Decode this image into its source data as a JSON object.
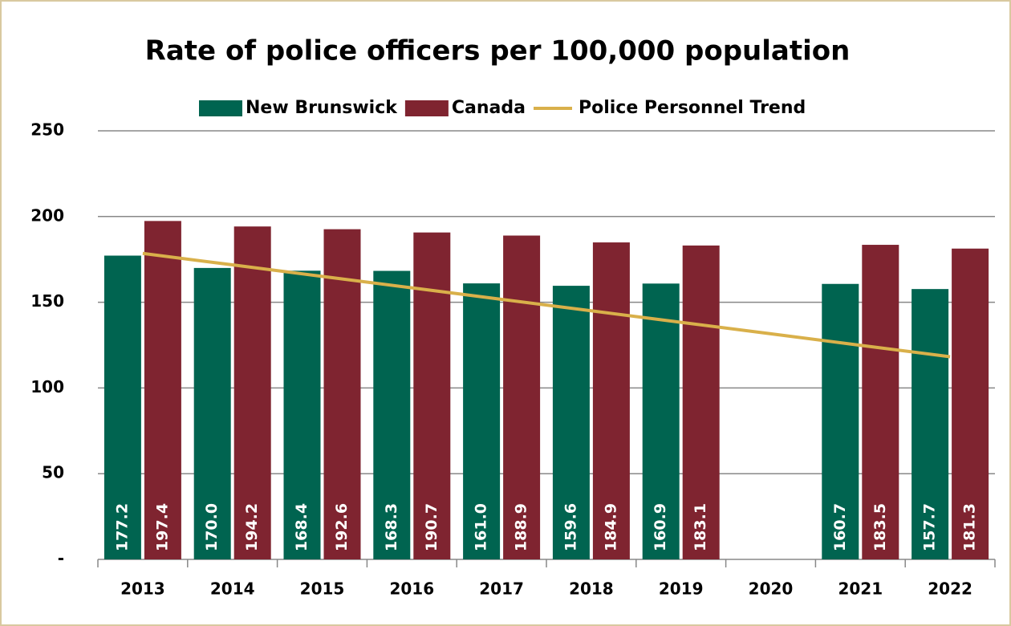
{
  "chart_data": {
    "type": "bar",
    "title": "Rate of police officers per 100,000 population",
    "categories": [
      "2013",
      "2014",
      "2015",
      "2016",
      "2017",
      "2018",
      "2019",
      "2020",
      "2021",
      "2022"
    ],
    "series": [
      {
        "name": "New Brunswick",
        "color": "#006450",
        "values": [
          177.2,
          170.0,
          168.4,
          168.3,
          161.0,
          159.6,
          160.9,
          null,
          160.7,
          157.7
        ],
        "value_labels": [
          "177.2",
          "170.0",
          "168.4",
          "168.3",
          "161.0",
          "159.6",
          "160.9",
          null,
          "160.7",
          "157.7"
        ]
      },
      {
        "name": "Canada",
        "color": "#7f2430",
        "values": [
          197.4,
          194.2,
          192.6,
          190.7,
          188.9,
          184.9,
          183.1,
          null,
          183.5,
          181.3
        ],
        "value_labels": [
          "197.4",
          "194.2",
          "192.6",
          "190.7",
          "188.9",
          "184.9",
          "183.1",
          null,
          "183.5",
          "181.3"
        ]
      },
      {
        "name": "Police Personnel Trend",
        "type": "line",
        "color": "#d9b04a",
        "values": [
          178.5,
          171.8,
          165.1,
          158.4,
          151.7,
          145.0,
          138.3,
          131.6,
          124.9,
          118.2
        ]
      }
    ],
    "ylim": [
      0,
      250
    ],
    "yticks": [
      {
        "value": 0,
        "label": "-"
      },
      50,
      100,
      150,
      200,
      250
    ],
    "grid": true,
    "legend": "top"
  }
}
